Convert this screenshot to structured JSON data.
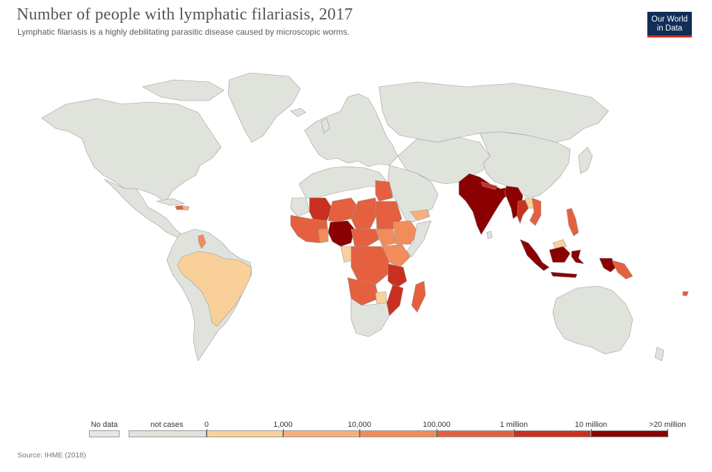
{
  "header": {
    "title": "Number of people with lymphatic filariasis, 2017",
    "subtitle": "Lymphatic filariasis is a highly debilitating parasitic disease caused by microscopic worms.",
    "logo_line1": "Our World",
    "logo_line2": "in Data"
  },
  "legend": {
    "no_data_label": "No data",
    "not_cases_label": "not cases",
    "breaks": [
      "0",
      "1,000",
      "10,000",
      "100,000",
      "1 million",
      "10 million",
      ">20 million"
    ],
    "colors": {
      "no_data": "#e6e6e6",
      "not_cases": "#dfe3dc",
      "bins": [
        "#fad09a",
        "#f7b07b",
        "#f28c5a",
        "#e4603f",
        "#c9301f",
        "#8b0000"
      ]
    }
  },
  "footer": {
    "source": "Source: IHME (2018)"
  },
  "map_colors": {
    "ocean": "#ffffff",
    "border": "#9a9a9a",
    "land_default": "#dfe3dc"
  }
}
